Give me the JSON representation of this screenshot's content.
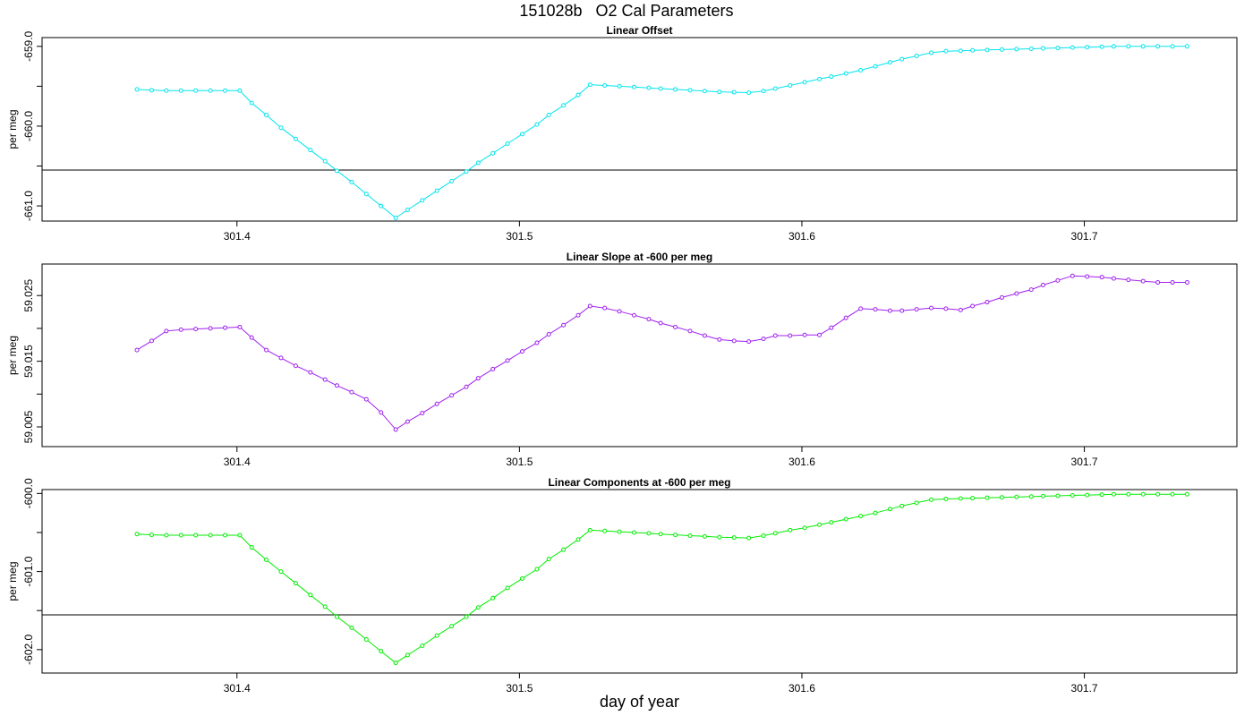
{
  "figure": {
    "title": "151028b   O2 Cal Parameters",
    "xlabel": "day of year"
  },
  "chart_data": [
    {
      "type": "line",
      "title": "Linear Offset",
      "ylabel": "per meg",
      "color": "#00e5ee",
      "xlim": [
        301.331,
        301.754
      ],
      "ylim": [
        -661.19,
        -658.89
      ],
      "xticks": [
        "301.4",
        "301.5",
        "301.6",
        "301.7"
      ],
      "yticks": [
        "-659.0",
        "-660.0",
        "-661.0"
      ],
      "hline": -660.55,
      "x": [
        301.3646,
        301.3698,
        301.375,
        301.3802,
        301.3854,
        301.3906,
        301.3958,
        301.401,
        301.4052,
        301.4104,
        301.4156,
        301.4208,
        301.426,
        301.4312,
        301.4354,
        301.4406,
        301.4458,
        301.451,
        301.4562,
        301.4604,
        301.4656,
        301.4708,
        301.476,
        301.4812,
        301.4854,
        301.4906,
        301.4958,
        301.501,
        301.5062,
        301.5104,
        301.5156,
        301.5208,
        301.525,
        301.5302,
        301.5354,
        301.5406,
        301.5458,
        301.55,
        301.5552,
        301.5604,
        301.5656,
        301.5708,
        301.576,
        301.5812,
        301.5864,
        301.5906,
        301.5958,
        301.601,
        301.6062,
        301.6104,
        301.6156,
        301.6208,
        301.626,
        301.6312,
        301.6354,
        301.6406,
        301.6458,
        301.651,
        301.6562,
        301.6604,
        301.6656,
        301.6708,
        301.676,
        301.6812,
        301.6854,
        301.6906,
        301.6958,
        301.701,
        301.7062,
        301.7104,
        301.7156,
        301.7208,
        301.726,
        301.7312,
        301.7364
      ],
      "y": [
        -659.54,
        -659.55,
        -659.555,
        -659.555,
        -659.555,
        -659.555,
        -659.555,
        -659.555,
        -659.71,
        -659.86,
        -660.02,
        -660.16,
        -660.3,
        -660.44,
        -660.56,
        -660.7,
        -660.85,
        -661.0,
        -661.15,
        -661.05,
        -660.93,
        -660.81,
        -660.69,
        -660.57,
        -660.46,
        -660.34,
        -660.22,
        -660.1,
        -659.98,
        -659.86,
        -659.74,
        -659.61,
        -659.48,
        -659.49,
        -659.5,
        -659.51,
        -659.52,
        -659.53,
        -659.54,
        -659.55,
        -659.56,
        -659.57,
        -659.575,
        -659.58,
        -659.56,
        -659.53,
        -659.49,
        -659.45,
        -659.41,
        -659.38,
        -659.34,
        -659.3,
        -659.25,
        -659.2,
        -659.16,
        -659.12,
        -659.08,
        -659.06,
        -659.055,
        -659.05,
        -659.045,
        -659.04,
        -659.035,
        -659.03,
        -659.025,
        -659.02,
        -659.015,
        -659.01,
        -659.005,
        -659.0,
        -659.0,
        -659.0,
        -659.0,
        -659.0,
        -659.0
      ]
    },
    {
      "type": "line",
      "title": "Linear Slope at -600 per meg",
      "ylabel": "per meg",
      "color": "#a020f0",
      "xlim": [
        301.331,
        301.754
      ],
      "ylim": [
        59.002,
        59.0298
      ],
      "xticks": [
        "301.4",
        "301.5",
        "301.6",
        "301.7"
      ],
      "yticks": [
        "59.025",
        "59.015",
        "59.005"
      ],
      "hline": null,
      "x": [
        301.3646,
        301.3698,
        301.375,
        301.3802,
        301.3854,
        301.3906,
        301.3958,
        301.401,
        301.4052,
        301.4104,
        301.4156,
        301.4208,
        301.426,
        301.4312,
        301.4354,
        301.4406,
        301.4458,
        301.451,
        301.4562,
        301.4604,
        301.4656,
        301.4708,
        301.476,
        301.4812,
        301.4854,
        301.4906,
        301.4958,
        301.501,
        301.5062,
        301.5104,
        301.5156,
        301.5208,
        301.525,
        301.5302,
        301.5354,
        301.5406,
        301.5458,
        301.55,
        301.5552,
        301.5604,
        301.5656,
        301.5708,
        301.576,
        301.5812,
        301.5864,
        301.5906,
        301.5958,
        301.601,
        301.6062,
        301.6104,
        301.6156,
        301.6208,
        301.626,
        301.6312,
        301.6354,
        301.6406,
        301.6458,
        301.651,
        301.6562,
        301.6604,
        301.6656,
        301.6708,
        301.676,
        301.6812,
        301.6854,
        301.6906,
        301.6958,
        301.701,
        301.7062,
        301.7104,
        301.7156,
        301.7208,
        301.726,
        301.7312,
        301.7364
      ],
      "y": [
        59.0167,
        59.0181,
        59.0196,
        59.0198,
        59.0199,
        59.02,
        59.0201,
        59.0202,
        59.0186,
        59.0167,
        59.0155,
        59.0143,
        59.0133,
        59.0122,
        59.0113,
        59.0103,
        59.0092,
        59.0072,
        59.0046,
        59.0058,
        59.0071,
        59.0085,
        59.0098,
        59.0111,
        59.0124,
        59.0138,
        59.0151,
        59.0165,
        59.0178,
        59.0191,
        59.0205,
        59.022,
        59.0234,
        59.0231,
        59.0226,
        59.022,
        59.0214,
        59.0208,
        59.0202,
        59.0196,
        59.0189,
        59.0183,
        59.0181,
        59.018,
        59.0184,
        59.0189,
        59.0189,
        59.019,
        59.019,
        59.0201,
        59.0216,
        59.023,
        59.0229,
        59.0227,
        59.0227,
        59.0229,
        59.0231,
        59.023,
        59.0228,
        59.0234,
        59.024,
        59.0247,
        59.0253,
        59.0259,
        59.0266,
        59.0273,
        59.028,
        59.0279,
        59.0278,
        59.0276,
        59.0274,
        59.0272,
        59.027,
        59.027,
        59.027
      ]
    },
    {
      "type": "line",
      "title": "Linear Components at -600 per meg",
      "ylabel": "per meg",
      "color": "#00ee00",
      "xlim": [
        301.331,
        301.754
      ],
      "ylim": [
        -602.3,
        -599.95
      ],
      "xticks": [
        "301.4",
        "301.5",
        "301.6",
        "301.7"
      ],
      "yticks": [
        "-600.0",
        "-601.0",
        "-602.0"
      ],
      "hline": -601.555,
      "x": [
        301.3646,
        301.3698,
        301.375,
        301.3802,
        301.3854,
        301.3906,
        301.3958,
        301.401,
        301.4052,
        301.4104,
        301.4156,
        301.4208,
        301.426,
        301.4312,
        301.4354,
        301.4406,
        301.4458,
        301.451,
        301.4562,
        301.4604,
        301.4656,
        301.4708,
        301.476,
        301.4812,
        301.4854,
        301.4906,
        301.4958,
        301.501,
        301.5062,
        301.5104,
        301.5156,
        301.5208,
        301.525,
        301.5302,
        301.5354,
        301.5406,
        301.5458,
        301.55,
        301.5552,
        301.5604,
        301.5656,
        301.5708,
        301.576,
        301.5812,
        301.5864,
        301.5906,
        301.5958,
        301.601,
        301.6062,
        301.6104,
        301.6156,
        301.6208,
        301.626,
        301.6312,
        301.6354,
        301.6406,
        301.6458,
        301.651,
        301.6562,
        301.6604,
        301.6656,
        301.6708,
        301.676,
        301.6812,
        301.6854,
        301.6906,
        301.6958,
        301.701,
        301.7062,
        301.7104,
        301.7156,
        301.7208,
        301.726,
        301.7312,
        301.7364
      ],
      "y": [
        -600.52,
        -600.53,
        -600.535,
        -600.535,
        -600.535,
        -600.535,
        -600.535,
        -600.535,
        -600.69,
        -600.85,
        -601.0,
        -601.15,
        -601.3,
        -601.45,
        -601.58,
        -601.72,
        -601.87,
        -602.02,
        -602.17,
        -602.07,
        -601.95,
        -601.82,
        -601.7,
        -601.58,
        -601.46,
        -601.34,
        -601.21,
        -601.09,
        -600.97,
        -600.84,
        -600.72,
        -600.59,
        -600.47,
        -600.48,
        -600.49,
        -600.5,
        -600.51,
        -600.52,
        -600.53,
        -600.54,
        -600.55,
        -600.56,
        -600.565,
        -600.57,
        -600.54,
        -600.51,
        -600.47,
        -600.44,
        -600.4,
        -600.37,
        -600.33,
        -600.29,
        -600.25,
        -600.2,
        -600.16,
        -600.12,
        -600.08,
        -600.07,
        -600.065,
        -600.06,
        -600.055,
        -600.05,
        -600.045,
        -600.04,
        -600.035,
        -600.03,
        -600.025,
        -600.02,
        -600.015,
        -600.01,
        -600.01,
        -600.01,
        -600.01,
        -600.01,
        -600.01
      ]
    }
  ]
}
